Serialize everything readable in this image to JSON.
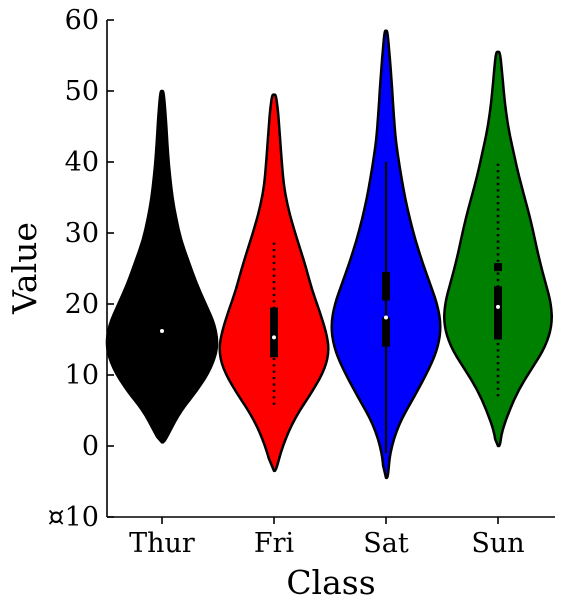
{
  "chart_data": {
    "type": "violin",
    "xlabel": "Class",
    "ylabel": "Value",
    "categories": [
      "Thur",
      "Fri",
      "Sat",
      "Sun"
    ],
    "ylim": [
      -10,
      60
    ],
    "yticks": [
      -10,
      0,
      10,
      20,
      30,
      40,
      50,
      60
    ],
    "ytick_labels": [
      "¤10",
      "0",
      "10",
      "20",
      "30",
      "40",
      "50",
      "60"
    ],
    "grid": false,
    "legend": "none",
    "violins": [
      {
        "category": "Thur",
        "color": "#000000",
        "min": 0.5,
        "max": 50,
        "median": 16.2,
        "profile": [
          [
            0.5,
            0.1
          ],
          [
            2,
            0.4
          ],
          [
            5,
            1.0
          ],
          [
            8,
            1.9
          ],
          [
            11,
            2.6
          ],
          [
            14,
            2.95
          ],
          [
            17,
            2.8
          ],
          [
            20,
            2.3
          ],
          [
            23,
            1.8
          ],
          [
            26,
            1.4
          ],
          [
            29,
            1.0
          ],
          [
            32,
            0.75
          ],
          [
            35,
            0.55
          ],
          [
            38,
            0.42
          ],
          [
            41,
            0.32
          ],
          [
            44,
            0.25
          ],
          [
            47,
            0.18
          ],
          [
            50,
            0.08
          ]
        ],
        "box": null
      },
      {
        "category": "Fri",
        "color": "#ff0000",
        "min": -3.5,
        "max": 49.5,
        "median": 15.3,
        "profile": [
          [
            -3.5,
            0.1
          ],
          [
            0,
            0.45
          ],
          [
            4,
            1.1
          ],
          [
            8,
            2.1
          ],
          [
            11,
            2.7
          ],
          [
            13.5,
            2.9
          ],
          [
            16,
            2.75
          ],
          [
            19,
            2.4
          ],
          [
            22,
            2.0
          ],
          [
            25,
            1.7
          ],
          [
            28,
            1.35
          ],
          [
            31,
            1.0
          ],
          [
            34,
            0.7
          ],
          [
            37,
            0.5
          ],
          [
            41,
            0.38
          ],
          [
            44,
            0.3
          ],
          [
            47,
            0.22
          ],
          [
            49.5,
            0.1
          ]
        ],
        "box": {
          "q1": 12.5,
          "q3": 19.5
        },
        "whiskers": [
          5.8,
          28.8
        ],
        "whisker_style": "dotted"
      },
      {
        "category": "Sat",
        "color": "#0000ff",
        "min": -4.5,
        "max": 58.5,
        "median": 18.1,
        "profile": [
          [
            -4.5,
            0.1
          ],
          [
            -1,
            0.2
          ],
          [
            3,
            0.65
          ],
          [
            7,
            1.5
          ],
          [
            11,
            2.3
          ],
          [
            14,
            2.75
          ],
          [
            17,
            2.9
          ],
          [
            20,
            2.7
          ],
          [
            23,
            2.3
          ],
          [
            26,
            1.9
          ],
          [
            29,
            1.55
          ],
          [
            32,
            1.25
          ],
          [
            35,
            1.0
          ],
          [
            38,
            0.8
          ],
          [
            41,
            0.62
          ],
          [
            44,
            0.48
          ],
          [
            47,
            0.4
          ],
          [
            50,
            0.33
          ],
          [
            53,
            0.25
          ],
          [
            56,
            0.16
          ],
          [
            58.5,
            0.07
          ]
        ],
        "box": {
          "q1": 14.0,
          "q3": 24.5
        },
        "box_gap": [
          18.1,
          20.5
        ],
        "whiskers": [
          -1,
          40
        ],
        "whisker_style": "solid"
      },
      {
        "category": "Sun",
        "color": "#008000",
        "min": 0,
        "max": 55.5,
        "median": 19.6,
        "profile": [
          [
            0,
            0.1
          ],
          [
            2,
            0.2
          ],
          [
            5,
            0.6
          ],
          [
            8,
            1.1
          ],
          [
            11,
            1.8
          ],
          [
            14,
            2.5
          ],
          [
            17,
            2.85
          ],
          [
            20,
            2.8
          ],
          [
            23,
            2.5
          ],
          [
            26,
            2.2
          ],
          [
            29,
            1.95
          ],
          [
            32,
            1.7
          ],
          [
            35,
            1.4
          ],
          [
            38,
            1.1
          ],
          [
            41,
            0.85
          ],
          [
            44,
            0.6
          ],
          [
            47,
            0.42
          ],
          [
            50,
            0.3
          ],
          [
            53,
            0.2
          ],
          [
            55.5,
            0.1
          ]
        ],
        "box": {
          "q1": 15.0,
          "q3": 22.5
        },
        "extra_marker": 25.2,
        "whiskers": [
          7.0,
          40
        ],
        "whisker_style": "dotted"
      }
    ]
  }
}
